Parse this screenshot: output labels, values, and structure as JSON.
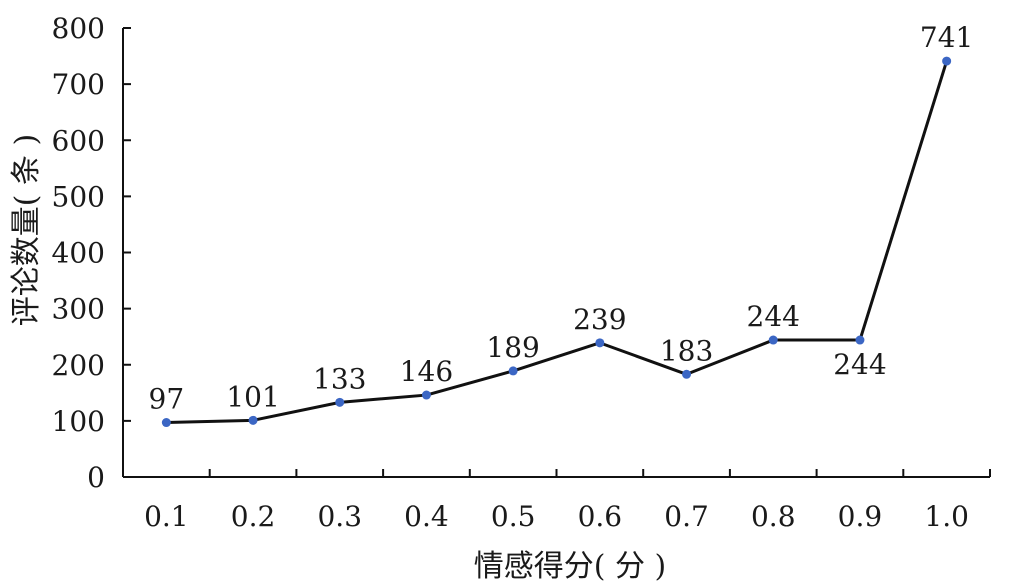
{
  "chart_data": {
    "type": "line",
    "title": "",
    "xlabel": "情感得分( 分 )",
    "ylabel": "评论数量( 条 )",
    "categories": [
      "0.1",
      "0.2",
      "0.3",
      "0.4",
      "0.5",
      "0.6",
      "0.7",
      "0.8",
      "0.9",
      "1.0"
    ],
    "series": [
      {
        "values": [
          97,
          101,
          133,
          146,
          189,
          239,
          183,
          244,
          244,
          741
        ],
        "data_labels": [
          "97",
          "101",
          "133",
          "146",
          "189",
          "239",
          "183",
          "244",
          "244",
          "741"
        ]
      }
    ],
    "ylim": [
      0,
      800
    ],
    "yticks": [
      "0",
      "100",
      "200",
      "300",
      "400",
      "500",
      "600",
      "700",
      "800"
    ],
    "grid": false,
    "legend": "none",
    "colors": {
      "line": "#111111",
      "marker": "#3b66c4",
      "axis": "#111111",
      "text": "#1a1a1a"
    }
  }
}
